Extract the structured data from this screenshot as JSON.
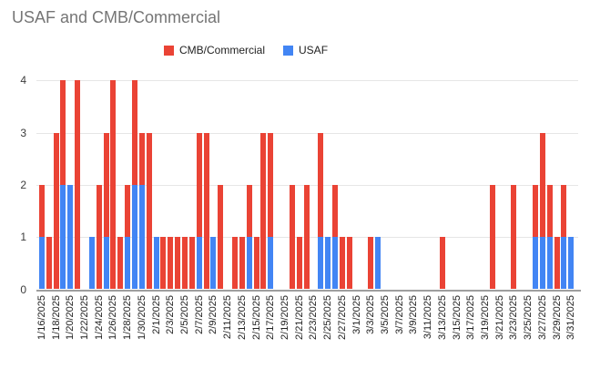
{
  "title": "USAF and CMB/Commercial",
  "legend": {
    "items": [
      {
        "label": "CMB/Commercial",
        "color": "#EA4335"
      },
      {
        "label": "USAF",
        "color": "#4285F4"
      }
    ]
  },
  "y_axis": {
    "ticks": [
      "0",
      "1",
      "2",
      "3",
      "4"
    ]
  },
  "chart_data": {
    "type": "bar",
    "stacked": true,
    "title": "USAF and CMB/Commercial",
    "xlabel": "",
    "ylabel": "",
    "ylim": [
      0,
      4
    ],
    "y_ticks": [
      0,
      1,
      2,
      3,
      4
    ],
    "grid": true,
    "legend_position": "top",
    "x_labels_shown_every": 2,
    "categories": [
      "1/16/2025",
      "1/17/2025",
      "1/18/2025",
      "1/19/2025",
      "1/20/2025",
      "1/21/2025",
      "1/22/2025",
      "1/23/2025",
      "1/24/2025",
      "1/25/2025",
      "1/26/2025",
      "1/27/2025",
      "1/28/2025",
      "1/29/2025",
      "1/30/2025",
      "1/31/2025",
      "2/1/2025",
      "2/2/2025",
      "2/3/2025",
      "2/4/2025",
      "2/5/2025",
      "2/6/2025",
      "2/7/2025",
      "2/8/2025",
      "2/9/2025",
      "2/10/2025",
      "2/11/2025",
      "2/12/2025",
      "2/13/2025",
      "2/14/2025",
      "2/15/2025",
      "2/16/2025",
      "2/17/2025",
      "2/18/2025",
      "2/19/2025",
      "2/20/2025",
      "2/21/2025",
      "2/22/2025",
      "2/23/2025",
      "2/24/2025",
      "2/25/2025",
      "2/26/2025",
      "2/27/2025",
      "2/28/2025",
      "3/1/2025",
      "3/2/2025",
      "3/3/2025",
      "3/4/2025",
      "3/5/2025",
      "3/6/2025",
      "3/7/2025",
      "3/8/2025",
      "3/9/2025",
      "3/10/2025",
      "3/11/2025",
      "3/12/2025",
      "3/13/2025",
      "3/14/2025",
      "3/15/2025",
      "3/16/2025",
      "3/17/2025",
      "3/18/2025",
      "3/19/2025",
      "3/20/2025",
      "3/21/2025",
      "3/22/2025",
      "3/23/2025",
      "3/24/2025",
      "3/25/2025",
      "3/26/2025",
      "3/27/2025",
      "3/28/2025",
      "3/29/2025",
      "3/30/2025",
      "3/31/2025"
    ],
    "series": [
      {
        "name": "USAF",
        "color": "#4285F4",
        "stack_order": "bottom",
        "values": [
          1,
          0,
          0,
          2,
          2,
          0,
          0,
          1,
          0,
          1,
          0,
          0,
          1,
          2,
          2,
          0,
          1,
          0,
          0,
          0,
          0,
          0,
          1,
          0,
          1,
          0,
          0,
          0,
          0,
          1,
          0,
          0,
          1,
          0,
          0,
          0,
          0,
          0,
          0,
          1,
          1,
          1,
          0,
          0,
          0,
          0,
          0,
          1,
          0,
          0,
          0,
          0,
          0,
          0,
          0,
          0,
          0,
          0,
          0,
          0,
          0,
          0,
          0,
          0,
          0,
          0,
          0,
          0,
          0,
          1,
          1,
          1,
          0,
          1,
          1
        ]
      },
      {
        "name": "CMB/Commercial",
        "color": "#EA4335",
        "stack_order": "top",
        "values": [
          1,
          1,
          3,
          2,
          0,
          4,
          0,
          0,
          2,
          2,
          4,
          1,
          1,
          2,
          1,
          3,
          0,
          1,
          1,
          1,
          1,
          1,
          2,
          3,
          0,
          2,
          0,
          1,
          1,
          1,
          1,
          3,
          2,
          0,
          0,
          2,
          1,
          2,
          0,
          2,
          0,
          1,
          1,
          1,
          0,
          0,
          1,
          0,
          0,
          0,
          0,
          0,
          0,
          0,
          0,
          0,
          1,
          0,
          0,
          0,
          0,
          0,
          0,
          2,
          0,
          0,
          2,
          0,
          0,
          1,
          2,
          1,
          1,
          1,
          0
        ]
      }
    ]
  }
}
